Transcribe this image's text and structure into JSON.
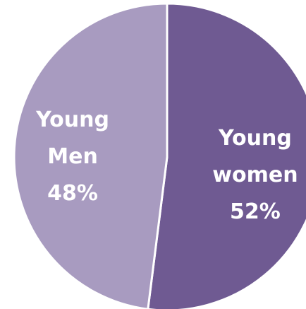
{
  "chart_data": {
    "type": "pie",
    "categories": [
      "Young women",
      "Young Men"
    ],
    "values": [
      52,
      48
    ],
    "value_labels": [
      "52%",
      "48%"
    ],
    "colors": [
      "#6f5a92",
      "#a89bc0"
    ]
  }
}
